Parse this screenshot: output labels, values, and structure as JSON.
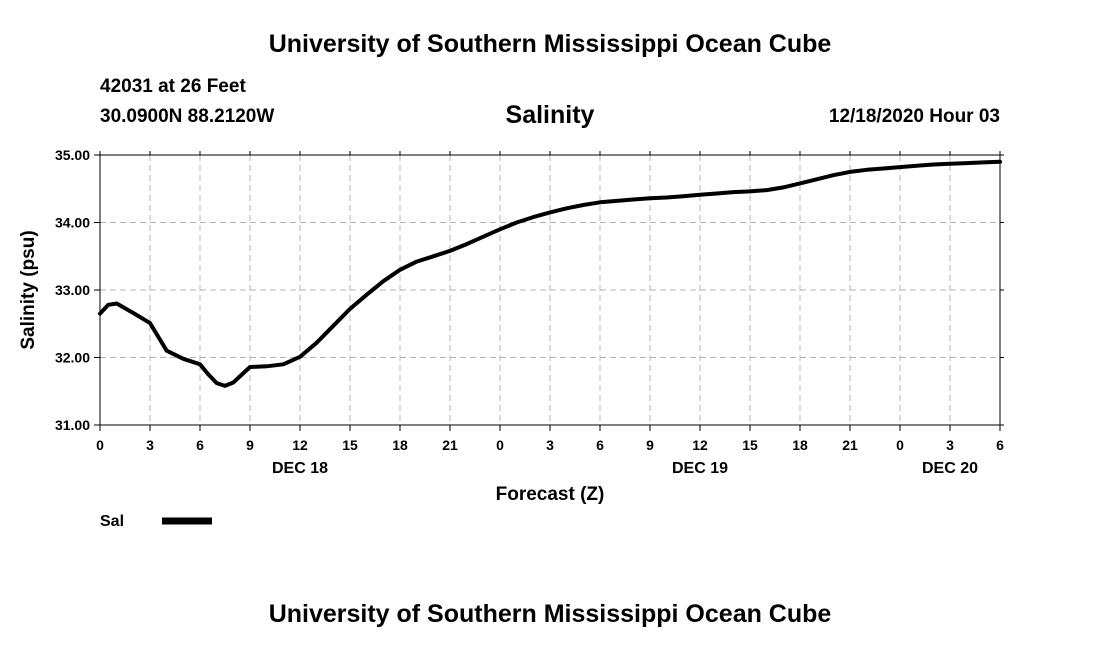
{
  "header": {
    "title": "University of Southern Mississippi Ocean Cube",
    "station": "42031 at 26 Feet",
    "coords": "30.0900N 88.2120W",
    "run_time": "12/18/2020 Hour 03"
  },
  "footer": {
    "title": "University of Southern Mississippi Ocean Cube"
  },
  "chart_data": {
    "type": "line",
    "title": "Salinity",
    "xlabel": "Forecast (Z)",
    "ylabel": "Salinity (psu)",
    "ylim": [
      31.0,
      35.0
    ],
    "y_ticks": [
      "31.00",
      "32.00",
      "33.00",
      "34.00",
      "35.00"
    ],
    "y_tick_values": [
      31,
      32,
      33,
      34,
      35
    ],
    "xlim": [
      0,
      54
    ],
    "x_ticks": [
      "0",
      "3",
      "6",
      "9",
      "12",
      "15",
      "18",
      "21",
      "0",
      "3",
      "6",
      "9",
      "12",
      "15",
      "18",
      "21",
      "0",
      "3",
      "6"
    ],
    "x_tick_values": [
      0,
      3,
      6,
      9,
      12,
      15,
      18,
      21,
      24,
      27,
      30,
      33,
      36,
      39,
      42,
      45,
      48,
      51,
      54
    ],
    "date_labels": [
      {
        "label": "DEC 18",
        "x": 12
      },
      {
        "label": "DEC 19",
        "x": 36
      },
      {
        "label": "DEC 20",
        "x": 51
      }
    ],
    "grid": true,
    "series": [
      {
        "name": "Sal",
        "color": "#000000",
        "x": [
          0,
          0.5,
          1,
          2,
          3,
          4,
          5,
          6,
          6.5,
          7,
          7.5,
          8,
          9,
          10,
          11,
          12,
          13,
          14,
          15,
          16,
          17,
          18,
          19,
          20,
          21,
          22,
          23,
          24,
          25,
          26,
          27,
          28,
          29,
          30,
          31,
          32,
          33,
          34,
          35,
          36,
          37,
          38,
          39,
          40,
          41,
          42,
          43,
          44,
          45,
          46,
          47,
          48,
          49,
          50,
          51,
          52,
          53,
          54
        ],
        "values": [
          32.65,
          32.78,
          32.8,
          32.66,
          32.51,
          32.1,
          31.98,
          31.9,
          31.75,
          31.62,
          31.58,
          31.63,
          31.86,
          31.87,
          31.9,
          32.01,
          32.22,
          32.47,
          32.72,
          32.93,
          33.13,
          33.3,
          33.42,
          33.5,
          33.58,
          33.68,
          33.79,
          33.9,
          34.0,
          34.08,
          34.15,
          34.21,
          34.26,
          34.3,
          34.32,
          34.34,
          34.36,
          34.37,
          34.39,
          34.41,
          34.43,
          34.45,
          34.46,
          34.48,
          34.52,
          34.58,
          34.64,
          34.7,
          34.75,
          34.78,
          34.8,
          34.82,
          34.84,
          34.86,
          34.87,
          34.88,
          34.89,
          34.9
        ]
      }
    ],
    "legend": {
      "label": "Sal",
      "position": "bottom-left"
    }
  }
}
